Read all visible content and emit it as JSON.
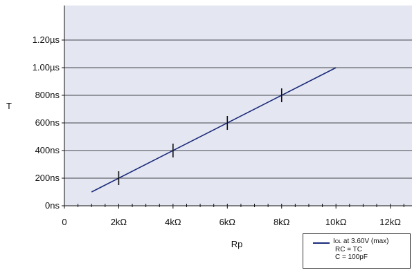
{
  "chart_data": {
    "type": "line",
    "xlabel": "Rp",
    "ylabel": "T",
    "xlim": [
      0,
      12.8
    ],
    "ylim": [
      0,
      1.45
    ],
    "x_ticks": [
      {
        "value": 0,
        "label": "0"
      },
      {
        "value": 2,
        "label": "2kΩ"
      },
      {
        "value": 4,
        "label": "4kΩ"
      },
      {
        "value": 6,
        "label": "6kΩ"
      },
      {
        "value": 8,
        "label": "8kΩ"
      },
      {
        "value": 10,
        "label": "10kΩ"
      },
      {
        "value": 12,
        "label": "12kΩ"
      }
    ],
    "y_ticks": [
      {
        "value": 0,
        "label": "0ns"
      },
      {
        "value": 0.2,
        "label": "200ns"
      },
      {
        "value": 0.4,
        "label": "400ns"
      },
      {
        "value": 0.6,
        "label": "600ns"
      },
      {
        "value": 0.8,
        "label": "800ns"
      },
      {
        "value": 1.0,
        "label": "1.00µs"
      },
      {
        "value": 1.2,
        "label": "1.20µs"
      }
    ],
    "grid": "horizontal",
    "series": [
      {
        "name": "IOL at 3.60V (max)",
        "x": [
          1,
          10
        ],
        "y": [
          0.1,
          1.0
        ],
        "markers": [
          {
            "x": 2,
            "y": 0.2
          },
          {
            "x": 4,
            "y": 0.4
          },
          {
            "x": 6,
            "y": 0.6
          },
          {
            "x": 8,
            "y": 0.8
          }
        ]
      }
    ],
    "legend": {
      "placement": "bottom-right",
      "line1_main": "I",
      "line1_sub": "OL",
      "line1_rest": " at 3.60V (max)",
      "line2": "RC = TC",
      "line3": "C = 100pF"
    },
    "colors": {
      "plot_bg": "#e4e6f2",
      "line": "#1a2a78",
      "grid": "#111111"
    }
  }
}
